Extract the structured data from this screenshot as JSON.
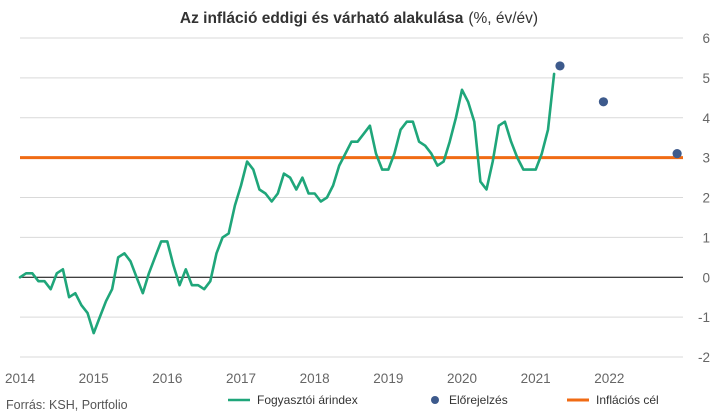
{
  "chart_data": {
    "type": "line",
    "title": "Az infláció eddigi és várható alakulása",
    "title_suffix": "(%, év/év)",
    "source": "Forrás: KSH, Portfolio",
    "y_axis": {
      "min": -2,
      "max": 6,
      "ticks": [
        6,
        5,
        4,
        3,
        2,
        1,
        0,
        -1,
        -2
      ],
      "position": "right",
      "gridlines": true
    },
    "x_axis": {
      "min": 2014,
      "max": 2023,
      "ticks": [
        "2014",
        "2015",
        "2016",
        "2017",
        "2018",
        "2019",
        "2020",
        "2021",
        "2022"
      ]
    },
    "legend_position": "bottom",
    "colors": {
      "cpi": "#1fa67a",
      "forecast": "#3d5a8c",
      "target": "#f06b14",
      "grid": "#d9d9d9",
      "zero": "#000000"
    },
    "series": [
      {
        "name": "Fogyasztói árindex",
        "kind": "line",
        "color": "#1fa67a",
        "points": [
          [
            2014.0,
            0.0
          ],
          [
            2014.083,
            0.1
          ],
          [
            2014.167,
            0.1
          ],
          [
            2014.25,
            -0.1
          ],
          [
            2014.333,
            -0.1
          ],
          [
            2014.417,
            -0.3
          ],
          [
            2014.5,
            0.1
          ],
          [
            2014.583,
            0.2
          ],
          [
            2014.667,
            -0.5
          ],
          [
            2014.75,
            -0.4
          ],
          [
            2014.833,
            -0.7
          ],
          [
            2014.917,
            -0.9
          ],
          [
            2015.0,
            -1.4
          ],
          [
            2015.083,
            -1.0
          ],
          [
            2015.167,
            -0.6
          ],
          [
            2015.25,
            -0.3
          ],
          [
            2015.333,
            0.5
          ],
          [
            2015.417,
            0.6
          ],
          [
            2015.5,
            0.4
          ],
          [
            2015.583,
            0.0
          ],
          [
            2015.667,
            -0.4
          ],
          [
            2015.75,
            0.1
          ],
          [
            2015.833,
            0.5
          ],
          [
            2015.917,
            0.9
          ],
          [
            2016.0,
            0.9
          ],
          [
            2016.083,
            0.3
          ],
          [
            2016.167,
            -0.2
          ],
          [
            2016.25,
            0.2
          ],
          [
            2016.333,
            -0.2
          ],
          [
            2016.417,
            -0.2
          ],
          [
            2016.5,
            -0.3
          ],
          [
            2016.583,
            -0.1
          ],
          [
            2016.667,
            0.6
          ],
          [
            2016.75,
            1.0
          ],
          [
            2016.833,
            1.1
          ],
          [
            2016.917,
            1.8
          ],
          [
            2017.0,
            2.3
          ],
          [
            2017.083,
            2.9
          ],
          [
            2017.167,
            2.7
          ],
          [
            2017.25,
            2.2
          ],
          [
            2017.333,
            2.1
          ],
          [
            2017.417,
            1.9
          ],
          [
            2017.5,
            2.1
          ],
          [
            2017.583,
            2.6
          ],
          [
            2017.667,
            2.5
          ],
          [
            2017.75,
            2.2
          ],
          [
            2017.833,
            2.5
          ],
          [
            2017.917,
            2.1
          ],
          [
            2018.0,
            2.1
          ],
          [
            2018.083,
            1.9
          ],
          [
            2018.167,
            2.0
          ],
          [
            2018.25,
            2.3
          ],
          [
            2018.333,
            2.8
          ],
          [
            2018.417,
            3.1
          ],
          [
            2018.5,
            3.4
          ],
          [
            2018.583,
            3.4
          ],
          [
            2018.667,
            3.6
          ],
          [
            2018.75,
            3.8
          ],
          [
            2018.833,
            3.1
          ],
          [
            2018.917,
            2.7
          ],
          [
            2019.0,
            2.7
          ],
          [
            2019.083,
            3.1
          ],
          [
            2019.167,
            3.7
          ],
          [
            2019.25,
            3.9
          ],
          [
            2019.333,
            3.9
          ],
          [
            2019.417,
            3.4
          ],
          [
            2019.5,
            3.3
          ],
          [
            2019.583,
            3.1
          ],
          [
            2019.667,
            2.8
          ],
          [
            2019.75,
            2.9
          ],
          [
            2019.833,
            3.4
          ],
          [
            2019.917,
            4.0
          ],
          [
            2020.0,
            4.7
          ],
          [
            2020.083,
            4.4
          ],
          [
            2020.167,
            3.9
          ],
          [
            2020.25,
            2.4
          ],
          [
            2020.333,
            2.2
          ],
          [
            2020.417,
            2.9
          ],
          [
            2020.5,
            3.8
          ],
          [
            2020.583,
            3.9
          ],
          [
            2020.667,
            3.4
          ],
          [
            2020.75,
            3.0
          ],
          [
            2020.833,
            2.7
          ],
          [
            2020.917,
            2.7
          ],
          [
            2021.0,
            2.7
          ],
          [
            2021.083,
            3.1
          ],
          [
            2021.167,
            3.7
          ],
          [
            2021.25,
            5.1
          ]
        ]
      },
      {
        "name": "Előrejelzés",
        "kind": "scatter",
        "color": "#3d5a8c",
        "points": [
          [
            2021.33,
            5.3
          ],
          [
            2021.92,
            4.4
          ],
          [
            2022.92,
            3.1
          ]
        ]
      },
      {
        "name": "Inflációs cél",
        "kind": "hline",
        "color": "#f06b14",
        "value": 3.0
      }
    ]
  }
}
